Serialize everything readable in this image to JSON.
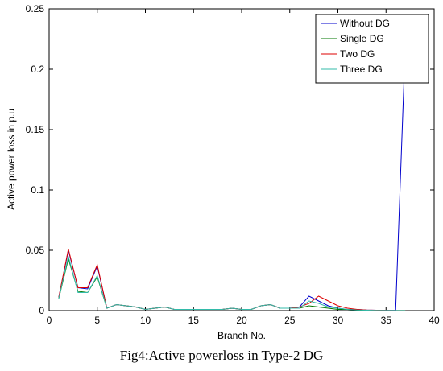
{
  "caption": "Fig4:Active powerloss in Type-2 DG",
  "chart_data": {
    "type": "line",
    "title": "",
    "xlabel": "Branch No.",
    "ylabel": "Active power loss in p.u",
    "xlim": [
      0,
      40
    ],
    "ylim": [
      0,
      0.25
    ],
    "xticks": [
      0,
      5,
      10,
      15,
      20,
      25,
      30,
      35,
      40
    ],
    "yticks": [
      0,
      0.05,
      0.1,
      0.15,
      0.2,
      0.25
    ],
    "xtick_labels": [
      "0",
      "5",
      "10",
      "15",
      "20",
      "25",
      "30",
      "35",
      "40"
    ],
    "ytick_labels": [
      "0",
      "0.05",
      "0.1",
      "0.15",
      "0.2",
      "0.25"
    ],
    "grid": false,
    "legend_position": "top-right",
    "x": [
      1,
      2,
      3,
      4,
      5,
      6,
      7,
      8,
      9,
      10,
      11,
      12,
      13,
      14,
      15,
      16,
      17,
      18,
      19,
      20,
      21,
      22,
      23,
      24,
      25,
      26,
      27,
      28,
      29,
      30,
      31,
      32,
      33,
      34,
      35,
      36,
      37
    ],
    "series": [
      {
        "name": "Without DG",
        "color": "#0000cc",
        "values": [
          0.011,
          0.05,
          0.019,
          0.018,
          0.037,
          0.002,
          0.005,
          0.004,
          0.003,
          0.001,
          0.002,
          0.003,
          0.001,
          0.001,
          0.001,
          0.001,
          0.001,
          0.001,
          0.002,
          0.001,
          0.001,
          0.004,
          0.005,
          0.002,
          0.002,
          0.003,
          0.012,
          0.008,
          0.004,
          0.002,
          0.001,
          0.001,
          0.0005,
          0.0003,
          0.0002,
          0.0002,
          0.22
        ]
      },
      {
        "name": "Single DG",
        "color": "#007700",
        "values": [
          0.01,
          0.043,
          0.016,
          0.015,
          0.028,
          0.002,
          0.005,
          0.004,
          0.003,
          0.001,
          0.002,
          0.003,
          0.001,
          0.001,
          0.001,
          0.001,
          0.001,
          0.001,
          0.002,
          0.001,
          0.001,
          0.004,
          0.005,
          0.002,
          0.002,
          0.002,
          0.004,
          0.003,
          0.002,
          0.001,
          0.001,
          0.0005,
          0.0003,
          0.0002,
          0.0001,
          0.0001,
          0.0001
        ]
      },
      {
        "name": "Two DG",
        "color": "#dd0000",
        "values": [
          0.011,
          0.051,
          0.019,
          0.019,
          0.038,
          0.002,
          0.005,
          0.004,
          0.003,
          0.001,
          0.002,
          0.003,
          0.001,
          0.001,
          0.001,
          0.001,
          0.001,
          0.001,
          0.002,
          0.001,
          0.001,
          0.004,
          0.005,
          0.002,
          0.002,
          0.003,
          0.006,
          0.012,
          0.008,
          0.004,
          0.002,
          0.001,
          0.0005,
          0.0003,
          0.0002,
          0.0001,
          0.0001
        ]
      },
      {
        "name": "Three DG",
        "color": "#33bbaa",
        "values": [
          0.01,
          0.045,
          0.015,
          0.015,
          0.029,
          0.002,
          0.005,
          0.004,
          0.003,
          0.001,
          0.002,
          0.003,
          0.001,
          0.001,
          0.001,
          0.001,
          0.001,
          0.001,
          0.002,
          0.001,
          0.001,
          0.004,
          0.005,
          0.002,
          0.002,
          0.002,
          0.008,
          0.006,
          0.003,
          0.002,
          0.001,
          0.0005,
          0.0003,
          0.0002,
          0.0001,
          0.0001,
          0.0001
        ]
      }
    ]
  }
}
